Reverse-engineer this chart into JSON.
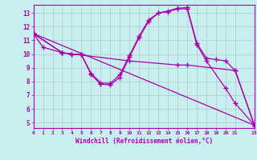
{
  "xlabel": "Windchill (Refroidissement éolien,°C)",
  "background_color": "#c8eef0",
  "grid_color": "#b0c8cc",
  "line_color": "#aa00aa",
  "xlim": [
    0,
    23
  ],
  "ylim": [
    4.6,
    13.6
  ],
  "xticks": [
    0,
    1,
    2,
    3,
    4,
    5,
    6,
    7,
    8,
    9,
    10,
    11,
    12,
    13,
    14,
    15,
    16,
    17,
    18,
    19,
    20,
    21,
    23
  ],
  "yticks": [
    5,
    6,
    7,
    8,
    9,
    10,
    11,
    12,
    13
  ],
  "lines": [
    {
      "x": [
        0,
        1,
        3,
        4,
        5,
        6,
        7,
        8,
        9,
        10,
        11,
        12,
        13,
        14,
        15,
        16,
        17,
        18,
        19,
        20,
        21,
        23
      ],
      "y": [
        11.5,
        10.5,
        10.1,
        10.0,
        9.95,
        8.6,
        7.9,
        7.85,
        8.5,
        9.9,
        11.3,
        12.5,
        13.0,
        13.15,
        13.35,
        13.4,
        10.8,
        9.7,
        9.6,
        9.5,
        8.8,
        4.8
      ]
    },
    {
      "x": [
        0,
        3,
        4,
        5,
        6,
        7,
        8,
        9,
        10,
        11,
        12,
        13,
        14,
        15,
        16,
        17,
        18,
        20,
        21,
        23
      ],
      "y": [
        11.5,
        10.1,
        10.0,
        9.95,
        8.5,
        7.8,
        7.75,
        8.3,
        9.8,
        11.2,
        12.4,
        13.0,
        13.1,
        13.3,
        13.3,
        10.7,
        9.5,
        7.5,
        6.4,
        4.8
      ]
    },
    {
      "x": [
        0,
        3,
        10,
        15,
        16,
        21,
        23
      ],
      "y": [
        11.5,
        10.1,
        9.5,
        9.2,
        9.2,
        8.8,
        4.8
      ]
    },
    {
      "x": [
        0,
        23
      ],
      "y": [
        11.5,
        4.8
      ]
    }
  ]
}
